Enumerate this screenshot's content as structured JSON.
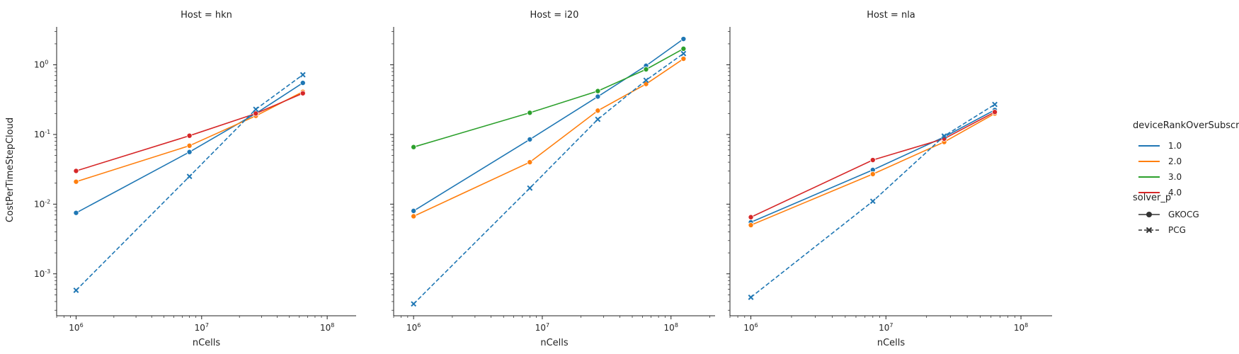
{
  "figure": {
    "ylabel": "CostPerTimeStepCloud",
    "xlabel": "nCells"
  },
  "legend": {
    "hue_title": "deviceRankOverSubscription",
    "style_title": "solver_p",
    "hue_entries": [
      {
        "label": "1.0",
        "color": "#1f77b4"
      },
      {
        "label": "2.0",
        "color": "#ff7f0e"
      },
      {
        "label": "3.0",
        "color": "#2ca02c"
      },
      {
        "label": "4.0",
        "color": "#d62728"
      }
    ],
    "style_entries": [
      {
        "label": "GKOCG",
        "marker": "circle",
        "dash": "solid"
      },
      {
        "label": "PCG",
        "marker": "x",
        "dash": "dashed"
      }
    ]
  },
  "chart_data": [
    {
      "type": "line",
      "title": "Host = hkn",
      "xlabel": "nCells",
      "ylabel": "CostPerTimeStepCloud",
      "xscale": "log",
      "yscale": "log",
      "xlim": [
        700000,
        170000000
      ],
      "ylim": [
        0.00025,
        3.5
      ],
      "xticks": [
        "10^6",
        "10^7",
        "10^8"
      ],
      "yticks": [
        "10^-3",
        "10^-2",
        "10^-1",
        "10^0"
      ],
      "series": [
        {
          "name": "1.0 GKOCG",
          "color": "#1f77b4",
          "marker": "circle",
          "dash": "solid",
          "x": [
            1000000,
            8000000,
            27000000,
            64000000
          ],
          "y": [
            0.0075,
            0.056,
            0.2,
            0.55
          ]
        },
        {
          "name": "2.0 GKOCG",
          "color": "#ff7f0e",
          "marker": "circle",
          "dash": "solid",
          "x": [
            1000000,
            8000000,
            27000000,
            64000000
          ],
          "y": [
            0.021,
            0.069,
            0.185,
            0.41
          ]
        },
        {
          "name": "4.0 GKOCG",
          "color": "#d62728",
          "marker": "circle",
          "dash": "solid",
          "x": [
            1000000,
            8000000,
            27000000,
            64000000
          ],
          "y": [
            0.03,
            0.096,
            0.2,
            0.39
          ]
        },
        {
          "name": "1.0 PCG",
          "color": "#1f77b4",
          "marker": "x",
          "dash": "dashed",
          "x": [
            1000000,
            8000000,
            27000000,
            64000000
          ],
          "y": [
            0.00058,
            0.025,
            0.23,
            0.72
          ]
        }
      ]
    },
    {
      "type": "line",
      "title": "Host = i20",
      "xlabel": "nCells",
      "xscale": "log",
      "yscale": "log",
      "xlim": [
        700000,
        220000000
      ],
      "ylim": [
        0.00025,
        3.5
      ],
      "xticks": [
        "10^6",
        "10^7",
        "10^8"
      ],
      "series": [
        {
          "name": "1.0 GKOCG",
          "color": "#1f77b4",
          "marker": "circle",
          "dash": "solid",
          "x": [
            1000000,
            8000000,
            27000000,
            64000000,
            125000000
          ],
          "y": [
            0.008,
            0.085,
            0.35,
            0.97,
            2.35
          ]
        },
        {
          "name": "2.0 GKOCG",
          "color": "#ff7f0e",
          "marker": "circle",
          "dash": "solid",
          "x": [
            1000000,
            8000000,
            27000000,
            64000000,
            125000000
          ],
          "y": [
            0.0067,
            0.04,
            0.22,
            0.53,
            1.22
          ]
        },
        {
          "name": "3.0 GKOCG",
          "color": "#2ca02c",
          "marker": "circle",
          "dash": "solid",
          "x": [
            1000000,
            8000000,
            27000000,
            64000000,
            125000000
          ],
          "y": [
            0.066,
            0.205,
            0.42,
            0.86,
            1.7
          ]
        },
        {
          "name": "1.0 PCG",
          "color": "#1f77b4",
          "marker": "x",
          "dash": "dashed",
          "x": [
            1000000,
            8000000,
            27000000,
            64000000,
            125000000
          ],
          "y": [
            0.00037,
            0.017,
            0.165,
            0.6,
            1.45
          ]
        }
      ]
    },
    {
      "type": "line",
      "title": "Host = nla",
      "xlabel": "nCells",
      "xscale": "log",
      "yscale": "log",
      "xlim": [
        700000,
        170000000
      ],
      "ylim": [
        0.00025,
        3.5
      ],
      "xticks": [
        "10^6",
        "10^7",
        "10^8"
      ],
      "series": [
        {
          "name": "1.0 GKOCG",
          "color": "#1f77b4",
          "marker": "circle",
          "dash": "solid",
          "x": [
            1000000,
            8000000,
            27000000,
            64000000
          ],
          "y": [
            0.0055,
            0.031,
            0.092,
            0.225
          ]
        },
        {
          "name": "2.0 GKOCG",
          "color": "#ff7f0e",
          "marker": "circle",
          "dash": "solid",
          "x": [
            1000000,
            8000000,
            27000000,
            64000000
          ],
          "y": [
            0.005,
            0.027,
            0.078,
            0.2
          ]
        },
        {
          "name": "4.0 GKOCG",
          "color": "#d62728",
          "marker": "circle",
          "dash": "solid",
          "x": [
            1000000,
            8000000,
            27000000,
            64000000
          ],
          "y": [
            0.0065,
            0.043,
            0.087,
            0.21
          ]
        },
        {
          "name": "1.0 PCG",
          "color": "#1f77b4",
          "marker": "x",
          "dash": "dashed",
          "x": [
            1000000,
            8000000,
            27000000,
            64000000
          ],
          "y": [
            0.00046,
            0.011,
            0.095,
            0.27
          ]
        }
      ]
    }
  ]
}
